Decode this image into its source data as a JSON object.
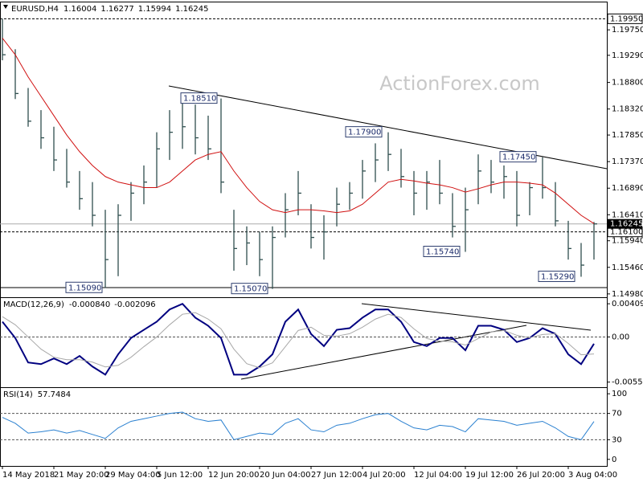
{
  "chart_data": [
    {
      "type": "ohlc",
      "title": "EURUSD,H4",
      "header_values": [
        1.16004,
        1.16277,
        1.15994,
        1.16245
      ],
      "watermark": "ActionForex.com",
      "categories": [
        "14 May 2018",
        null,
        null,
        null,
        "21 May 20:00",
        null,
        null,
        null,
        "29 May 04:00",
        null,
        null,
        null,
        "5 Jun 12:00",
        null,
        null,
        null,
        "12 Jun 20:00",
        null,
        null,
        null,
        "20 Jun 04:00",
        null,
        null,
        null,
        "27 Jun 12:00",
        null,
        null,
        null,
        "4 Jul 20:00",
        null,
        null,
        null,
        "12 Jul 04:00",
        null,
        null,
        null,
        "19 Jul 12:00",
        null,
        null,
        null,
        "26 Jul 20:00",
        null,
        null,
        null,
        "3 Aug 04:00",
        null,
        null
      ],
      "high": [
        1.1995,
        1.194,
        1.187,
        1.183,
        1.18,
        1.176,
        1.172,
        1.17,
        1.165,
        1.166,
        1.17,
        1.173,
        1.179,
        1.183,
        1.1851,
        1.184,
        1.182,
        1.1851,
        1.165,
        1.162,
        1.161,
        1.162,
        1.168,
        1.172,
        1.166,
        1.164,
        1.169,
        1.17,
        1.174,
        1.177,
        1.179,
        1.176,
        1.172,
        1.172,
        1.174,
        1.168,
        1.169,
        1.175,
        1.174,
        1.173,
        1.172,
        1.17,
        1.1745,
        1.17,
        1.163,
        1.159,
        1.1628
      ],
      "low": [
        1.192,
        1.185,
        1.18,
        1.176,
        1.172,
        1.169,
        1.165,
        1.162,
        1.1509,
        1.153,
        1.163,
        1.166,
        1.169,
        1.174,
        1.176,
        1.175,
        1.174,
        1.168,
        1.154,
        1.155,
        1.153,
        1.1507,
        1.16,
        1.164,
        1.158,
        1.156,
        1.162,
        1.165,
        1.167,
        1.17,
        1.172,
        1.169,
        1.164,
        1.165,
        1.166,
        1.16,
        1.1574,
        1.166,
        1.168,
        1.167,
        1.162,
        1.164,
        1.167,
        1.162,
        1.156,
        1.1529,
        1.156
      ],
      "close": [
        1.193,
        1.186,
        1.181,
        1.178,
        1.174,
        1.17,
        1.167,
        1.164,
        1.156,
        1.164,
        1.168,
        1.17,
        1.176,
        1.179,
        1.18,
        1.178,
        1.176,
        1.17,
        1.158,
        1.159,
        1.156,
        1.16,
        1.165,
        1.168,
        1.16,
        1.161,
        1.166,
        1.168,
        1.172,
        1.174,
        1.175,
        1.171,
        1.168,
        1.17,
        1.168,
        1.162,
        1.165,
        1.172,
        1.17,
        1.171,
        1.164,
        1.169,
        1.169,
        1.163,
        1.158,
        1.155,
        1.16245
      ],
      "bar_color": "#2f4f4f",
      "moving_average": {
        "color": "#d01010",
        "values": [
          1.196,
          1.193,
          1.189,
          1.1855,
          1.182,
          1.1785,
          1.1755,
          1.173,
          1.171,
          1.17,
          1.1695,
          1.169,
          1.169,
          1.17,
          1.172,
          1.174,
          1.175,
          1.1755,
          1.172,
          1.169,
          1.1665,
          1.165,
          1.1645,
          1.165,
          1.165,
          1.1648,
          1.1645,
          1.1648,
          1.166,
          1.168,
          1.17,
          1.1705,
          1.1702,
          1.1698,
          1.1695,
          1.169,
          1.1682,
          1.1688,
          1.1695,
          1.17,
          1.17,
          1.1698,
          1.1695,
          1.168,
          1.166,
          1.164,
          1.1625
        ]
      },
      "ylim": [
        1.1492,
        1.2026
      ],
      "yticks": [
        {
          "value": 1.1975,
          "label": "1.19750"
        },
        {
          "value": 1.1929,
          "label": "1.19290"
        },
        {
          "value": 1.188,
          "label": "1.18800"
        },
        {
          "value": 1.1832,
          "label": "1.18320"
        },
        {
          "value": 1.1785,
          "label": "1.17850"
        },
        {
          "value": 1.1737,
          "label": "1.17370"
        },
        {
          "value": 1.1689,
          "label": "1.16890"
        },
        {
          "value": 1.1641,
          "label": "1.16410"
        },
        {
          "value": 1.1594,
          "label": "1.15940"
        },
        {
          "value": 1.1546,
          "label": "1.15460"
        },
        {
          "value": 1.1498,
          "label": "1.14980"
        }
      ],
      "price_levels": [
        {
          "value": 1.1995,
          "label": "1.19950"
        },
        {
          "value": 1.161,
          "label": "1.16100"
        }
      ],
      "last_price": 1.16245,
      "annotations": [
        {
          "value": 1.1851,
          "label": "1.18510"
        },
        {
          "value": 1.179,
          "label": "1.17900"
        },
        {
          "value": 1.1745,
          "label": "1.17450"
        },
        {
          "value": 1.1574,
          "label": "1.15740"
        },
        {
          "value": 1.1529,
          "label": "1.15290"
        },
        {
          "value": 1.1509,
          "label": "1.15090"
        },
        {
          "value": 1.1507,
          "label": "1.15070"
        }
      ]
    },
    {
      "type": "line",
      "title": "MACD(12,26,9)",
      "header_values": [
        {
          "value": -0.00084,
          "label": "-0.000840"
        },
        -0.002096
      ],
      "series": [
        {
          "color": "#000080",
          "values": [
            0.00188,
            -0.00013,
            -0.00315,
            -0.00335,
            -0.00265,
            -0.00335,
            -0.00234,
            -0.00365,
            -0.00465,
            -0.00214,
            -0.00013,
            0.00088,
            0.00188,
            0.00339,
            0.00409,
            0.00238,
            0.00138,
            -0.00013,
            -0.00465,
            -0.00465,
            -0.00365,
            -0.00214,
            0.00188,
            0.00339,
            0.00037,
            -0.00113,
            0.00088,
            0.00108,
            0.00238,
            0.00339,
            0.00339,
            0.00188,
            -0.00063,
            -0.00113,
            -0.00013,
            -0.00013,
            -0.00164,
            0.00138,
            0.00138,
            0.00088,
            -0.00063,
            -0.00013,
            0.00108,
            0.00037,
            -0.00214,
            -0.00335,
            -0.00084
          ]
        },
        {
          "color": "#a8a8a8",
          "values": [
            0.0025,
            0.0015,
            0.0,
            -0.0015,
            -0.0025,
            -0.0028,
            -0.0028,
            -0.0031,
            -0.0037,
            -0.0035,
            -0.0025,
            -0.0012,
            0.0,
            0.0015,
            0.0028,
            0.003,
            0.0022,
            0.001,
            -0.0015,
            -0.0033,
            -0.0038,
            -0.0032,
            -0.0012,
            0.0008,
            0.0012,
            0.0002,
            0.0001,
            0.0004,
            0.0012,
            0.0022,
            0.0028,
            0.0024,
            0.001,
            -0.0002,
            -0.0005,
            -0.0006,
            -0.001,
            -0.0002,
            0.0006,
            0.0008,
            0.0002,
            -0.0001,
            0.0003,
            0.0004,
            -0.0008,
            -0.0022,
            -0.002096
          ]
        }
      ],
      "ylim": [
        -0.0062,
        0.0049
      ],
      "yticks": [
        0.004094,
        {
          "value": 0,
          "label": "0.00"
        },
        -0.005568
      ],
      "levels": [
        0
      ]
    },
    {
      "type": "line",
      "title": "RSI(14)",
      "header_values": [
        57.7484
      ],
      "series": [
        {
          "color": "#2a80d0",
          "values": [
            64,
            55,
            40,
            42,
            45,
            40,
            44,
            38,
            32,
            48,
            58,
            62,
            66,
            70,
            72,
            62,
            58,
            60,
            30,
            35,
            40,
            38,
            55,
            62,
            45,
            42,
            52,
            55,
            62,
            68,
            70,
            58,
            48,
            45,
            52,
            50,
            42,
            62,
            60,
            58,
            52,
            55,
            58,
            48,
            35,
            30,
            57.7484
          ]
        }
      ],
      "ylim": [
        -10,
        110
      ],
      "yticks": [
        100,
        70,
        30,
        0
      ],
      "levels": [
        70,
        30
      ]
    }
  ]
}
